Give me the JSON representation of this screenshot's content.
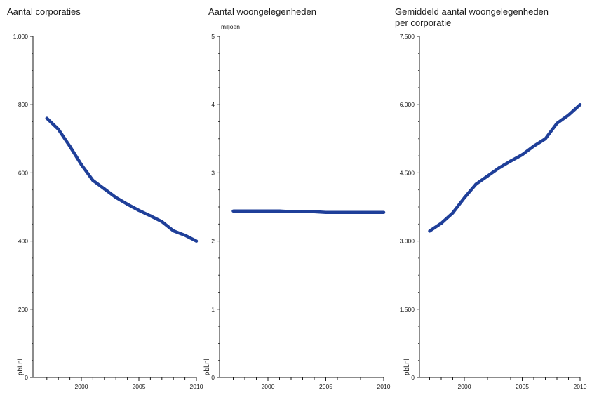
{
  "chart_data": [
    {
      "type": "line",
      "title": "Aantal corporaties",
      "unit": "",
      "source": "pbl.nl",
      "color": "#1f3f99",
      "xlim": [
        1997,
        2010
      ],
      "ylim": [
        0,
        1000
      ],
      "x_ticks": [
        2000,
        2005,
        2010
      ],
      "y_ticks": [
        0,
        200,
        400,
        600,
        800,
        1000
      ],
      "y_tick_labels": [
        "0",
        "200",
        "400",
        "600",
        "800",
        "1.000"
      ],
      "x": [
        1997,
        1998,
        1999,
        2000,
        2001,
        2002,
        2003,
        2004,
        2005,
        2006,
        2007,
        2008,
        2009,
        2010
      ],
      "values": [
        760,
        728,
        678,
        624,
        578,
        553,
        528,
        508,
        490,
        474,
        457,
        430,
        417,
        400
      ]
    },
    {
      "type": "line",
      "title": "Aantal woongelegenheden",
      "unit": "miljoen",
      "source": "pbl.nl",
      "color": "#1f3f99",
      "xlim": [
        1997,
        2010
      ],
      "ylim": [
        0,
        5
      ],
      "x_ticks": [
        2000,
        2005,
        2010
      ],
      "y_ticks": [
        0,
        1,
        2,
        3,
        4,
        5
      ],
      "y_tick_labels": [
        "0",
        "1",
        "2",
        "3",
        "4",
        "5"
      ],
      "x": [
        1997,
        1998,
        1999,
        2000,
        2001,
        2002,
        2003,
        2004,
        2005,
        2006,
        2007,
        2008,
        2009,
        2010
      ],
      "values": [
        2.44,
        2.44,
        2.44,
        2.44,
        2.44,
        2.43,
        2.43,
        2.43,
        2.42,
        2.42,
        2.42,
        2.42,
        2.42,
        2.42
      ]
    },
    {
      "type": "line",
      "title": "Gemiddeld aantal woongelegenheden per corporatie",
      "title_lines": [
        "Gemiddeld aantal woongelegenheden",
        "per corporatie"
      ],
      "unit": "",
      "source": "pbl.nl",
      "color": "#1f3f99",
      "xlim": [
        1997,
        2010
      ],
      "ylim": [
        0,
        7500
      ],
      "x_ticks": [
        2000,
        2005,
        2010
      ],
      "y_ticks": [
        0,
        1500,
        3000,
        4500,
        6000,
        7500
      ],
      "y_tick_labels": [
        "0",
        "1.500",
        "3.000",
        "4.500",
        "6.000",
        "7.500"
      ],
      "x": [
        1997,
        1998,
        1999,
        2000,
        2001,
        2002,
        2003,
        2004,
        2005,
        2006,
        2007,
        2008,
        2009,
        2010
      ],
      "values": [
        3220,
        3390,
        3620,
        3950,
        4250,
        4430,
        4610,
        4760,
        4900,
        5090,
        5250,
        5590,
        5770,
        6000
      ]
    }
  ]
}
